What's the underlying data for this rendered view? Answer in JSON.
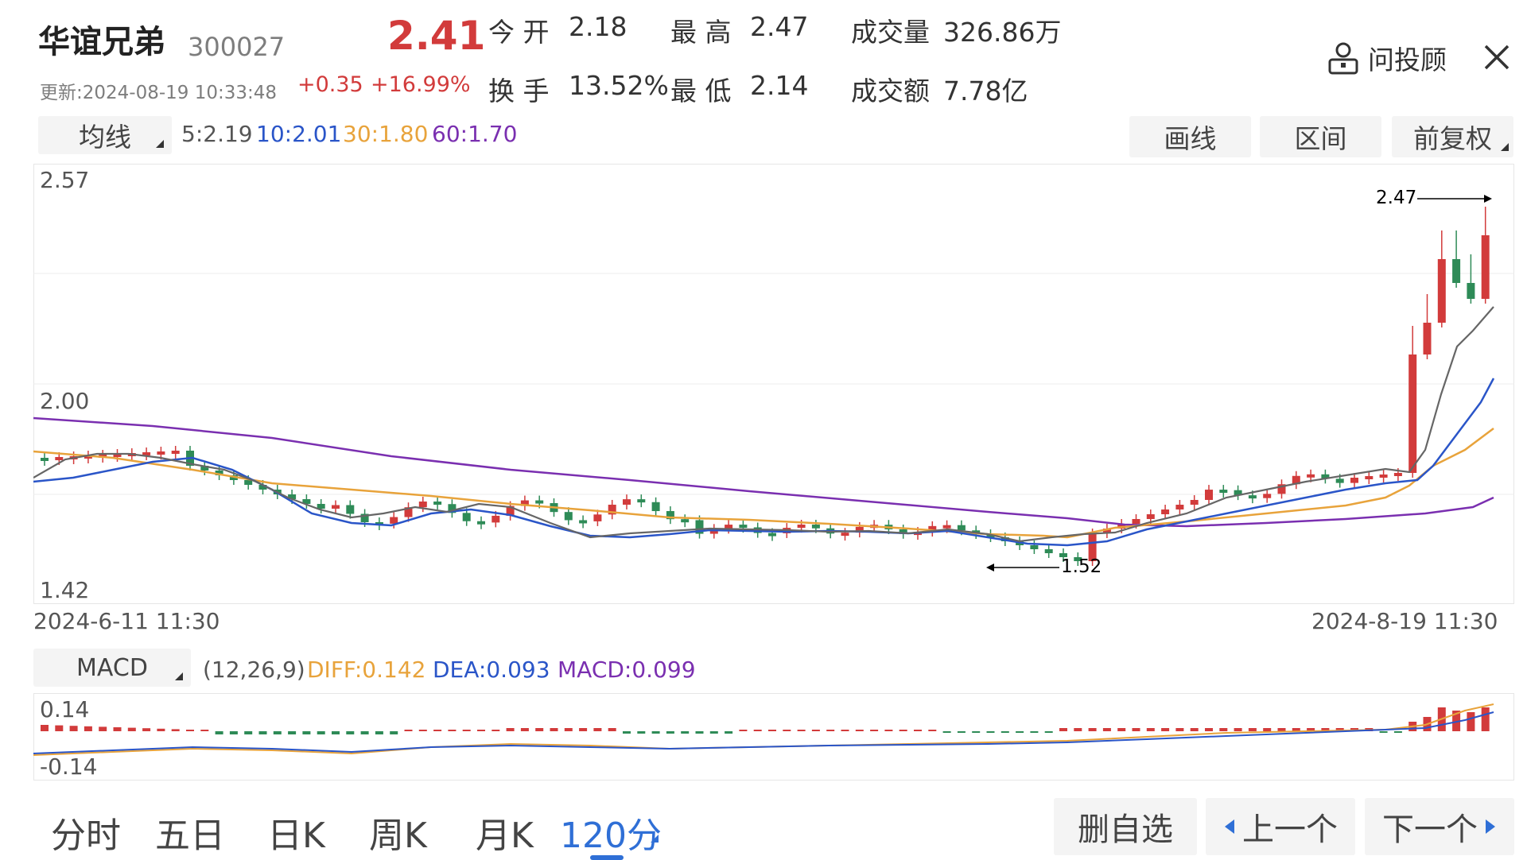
{
  "header": {
    "name": "华谊兄弟",
    "code": "300027",
    "price": "2.41",
    "updated": "更新:2024-08-19 10:33:48",
    "change": "+0.35",
    "change_pct": "+16.99%",
    "open_label": "今 开",
    "open_value": "2.18",
    "high_label": "最 高",
    "high_value": "2.47",
    "volume_label": "成交量",
    "volume_value": "326.86万",
    "turnover_label": "换 手",
    "turnover_value": "13.52%",
    "low_label": "最 低",
    "low_value": "2.14",
    "amount_label": "成交额",
    "amount_value": "7.78亿",
    "advisor_label": "问投顾",
    "close_icon": "close-icon",
    "user_icon": "user-icon"
  },
  "toolbar": {
    "indicator": "均线",
    "ma5": "5:2.19",
    "ma10": "10:2.01",
    "ma30": "30:1.80",
    "ma60": "60:1.70",
    "draw_button": "画线",
    "range_button": "区间",
    "adjust_button": "前复权",
    "colors": {
      "ma5": "#555555",
      "ma10": "#2a55c8",
      "ma30": "#e8a33b",
      "ma60": "#7a2fb0",
      "up": "#d23b3b",
      "down": "#2e8b57"
    }
  },
  "main_chart": {
    "y_top": "2.57",
    "y_mid": "2.00",
    "y_bottom": "1.42",
    "x_start": "2024-6-11 11:30",
    "x_end": "2024-8-19 11:30",
    "high_marker": "2.47",
    "low_marker": "1.52"
  },
  "macd": {
    "indicator": "MACD",
    "params": "(12,26,9)",
    "diff": "DIFF:0.142",
    "dea": "DEA:0.093",
    "macd": "MACD:0.099",
    "y_top": "0.14",
    "y_bottom": "-0.14"
  },
  "bottom_tabs": [
    "分时",
    "五日",
    "日K",
    "周K",
    "月K",
    "120分"
  ],
  "bottom_buttons": {
    "remove": "删自选",
    "prev": "上一个",
    "next": "下一个"
  }
}
